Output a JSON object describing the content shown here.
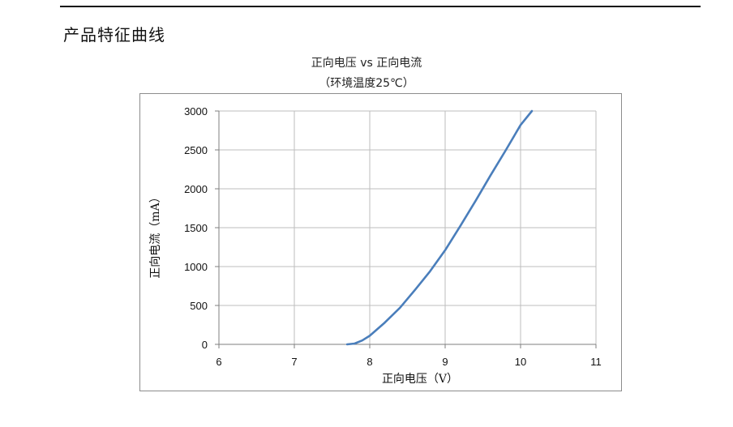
{
  "section": {
    "title": "产品特征曲线"
  },
  "chart_data": {
    "type": "line",
    "title": "正向电压 vs 正向电流",
    "subtitle": "（环境温度25℃）",
    "xlabel": "正向电压（V）",
    "ylabel": "正向电流（mA）",
    "xlim": [
      6,
      11
    ],
    "ylim": [
      0,
      3000
    ],
    "x_ticks": [
      "6",
      "7",
      "8",
      "9",
      "10",
      "11"
    ],
    "y_ticks": [
      "0",
      "500",
      "1000",
      "1500",
      "2000",
      "2500",
      "3000"
    ],
    "grid": true,
    "series": [
      {
        "color": "#4a7ebb",
        "x": [
          7.7,
          7.8,
          7.9,
          8.0,
          8.2,
          8.4,
          8.6,
          8.8,
          9.0,
          9.2,
          9.4,
          9.6,
          9.8,
          10.0,
          10.15
        ],
        "y": [
          0,
          10,
          50,
          110,
          280,
          470,
          700,
          940,
          1210,
          1520,
          1840,
          2170,
          2490,
          2820,
          3000
        ]
      }
    ]
  }
}
